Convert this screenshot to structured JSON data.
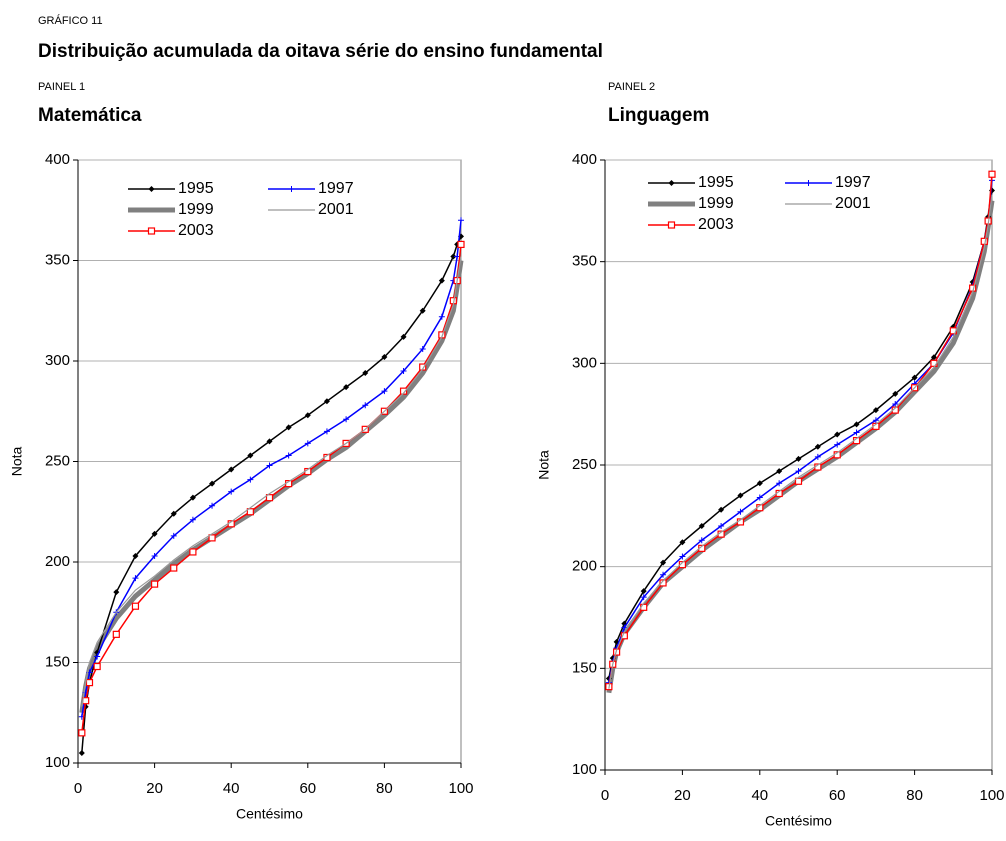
{
  "figure_label": "GRÁFICO 11",
  "title": "Distribuição acumulada da oitava série do ensino fundamental",
  "chart_data": [
    {
      "type": "line",
      "panel_label": "PAINEL 1",
      "title": "Matemática",
      "x_label": "Centésimo",
      "y_label": "Nota",
      "xlim": [
        0,
        100
      ],
      "xticks": [
        0,
        20,
        40,
        60,
        80,
        100
      ],
      "ylim": [
        100,
        400
      ],
      "yticks": [
        100,
        150,
        200,
        250,
        300,
        350,
        400
      ],
      "grid": true,
      "x": [
        1,
        2,
        3,
        5,
        10,
        15,
        20,
        25,
        30,
        35,
        40,
        45,
        50,
        55,
        60,
        65,
        70,
        75,
        80,
        85,
        90,
        95,
        98,
        99,
        100
      ],
      "series": [
        {
          "name": "1995",
          "color": "#000000",
          "width": 1.5,
          "marker": "diamond",
          "values": [
            105,
            128,
            140,
            155,
            185,
            203,
            214,
            224,
            232,
            239,
            246,
            253,
            260,
            267,
            273,
            280,
            287,
            294,
            302,
            312,
            325,
            340,
            352,
            358,
            362
          ]
        },
        {
          "name": "1997",
          "color": "#0000ff",
          "width": 1.5,
          "marker": "plus",
          "values": [
            123,
            135,
            145,
            153,
            175,
            192,
            203,
            213,
            221,
            228,
            235,
            241,
            248,
            253,
            259,
            265,
            271,
            278,
            285,
            295,
            306,
            322,
            340,
            352,
            370
          ]
        },
        {
          "name": "1999",
          "color": "#808080",
          "width": 5,
          "marker": "none",
          "values": [
            125,
            138,
            147,
            157,
            172,
            183,
            191,
            199,
            206,
            212,
            218,
            224,
            231,
            238,
            244,
            251,
            257,
            265,
            273,
            282,
            294,
            310,
            325,
            337,
            350
          ]
        },
        {
          "name": "2001",
          "color": "#999999",
          "width": 1.2,
          "marker": "none",
          "values": [
            128,
            140,
            150,
            160,
            175,
            186,
            193,
            201,
            208,
            214,
            220,
            227,
            234,
            240,
            246,
            253,
            259,
            266,
            275,
            284,
            296,
            312,
            328,
            340,
            352
          ]
        },
        {
          "name": "2003",
          "color": "#ff0000",
          "width": 1.5,
          "marker": "square",
          "values": [
            115,
            131,
            140,
            148,
            164,
            178,
            189,
            197,
            205,
            212,
            219,
            225,
            232,
            239,
            245,
            252,
            259,
            266,
            275,
            285,
            297,
            313,
            330,
            340,
            358
          ]
        }
      ]
    },
    {
      "type": "line",
      "panel_label": "PAINEL 2",
      "title": "Linguagem",
      "x_label": "Centésimo",
      "y_label": "Nota",
      "xlim": [
        0,
        100
      ],
      "xticks": [
        0,
        20,
        40,
        60,
        80,
        100
      ],
      "ylim": [
        100,
        400
      ],
      "yticks": [
        100,
        150,
        200,
        250,
        300,
        350,
        400
      ],
      "grid": true,
      "x": [
        1,
        2,
        3,
        5,
        10,
        15,
        20,
        25,
        30,
        35,
        40,
        45,
        50,
        55,
        60,
        65,
        70,
        75,
        80,
        85,
        90,
        95,
        98,
        99,
        100
      ],
      "series": [
        {
          "name": "1995",
          "color": "#000000",
          "width": 1.5,
          "marker": "diamond",
          "values": [
            145,
            155,
            163,
            172,
            188,
            202,
            212,
            220,
            228,
            235,
            241,
            247,
            253,
            259,
            265,
            270,
            277,
            285,
            293,
            303,
            318,
            340,
            360,
            372,
            385
          ]
        },
        {
          "name": "1997",
          "color": "#0000ff",
          "width": 1.5,
          "marker": "plus",
          "values": [
            143,
            153,
            160,
            170,
            185,
            196,
            205,
            213,
            220,
            227,
            234,
            241,
            247,
            254,
            260,
            266,
            272,
            280,
            290,
            300,
            315,
            338,
            360,
            370,
            390
          ]
        },
        {
          "name": "1999",
          "color": "#808080",
          "width": 5,
          "marker": "none",
          "values": [
            138,
            150,
            158,
            167,
            180,
            192,
            200,
            208,
            215,
            222,
            228,
            235,
            242,
            248,
            254,
            261,
            268,
            276,
            286,
            296,
            310,
            332,
            355,
            367,
            380
          ]
        },
        {
          "name": "2001",
          "color": "#999999",
          "width": 1.2,
          "marker": "none",
          "values": [
            140,
            152,
            159,
            168,
            182,
            193,
            202,
            210,
            217,
            223,
            230,
            237,
            244,
            250,
            256,
            263,
            270,
            278,
            288,
            298,
            313,
            335,
            357,
            368,
            383
          ]
        },
        {
          "name": "2003",
          "color": "#ff0000",
          "width": 1.5,
          "marker": "square",
          "values": [
            141,
            152,
            158,
            166,
            180,
            192,
            201,
            209,
            216,
            222,
            229,
            236,
            242,
            249,
            255,
            262,
            269,
            277,
            288,
            300,
            316,
            337,
            360,
            370,
            393
          ]
        }
      ]
    }
  ]
}
